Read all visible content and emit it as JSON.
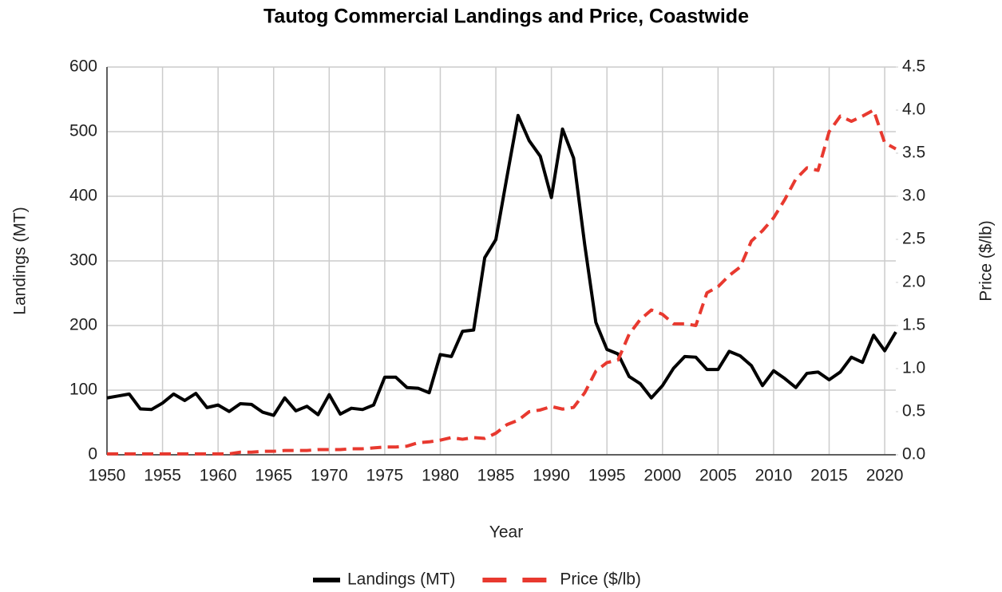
{
  "chart_data": {
    "type": "line",
    "title": "Tautog Commercial Landings and Price, Coastwide",
    "x_label": "Year",
    "y_label": "Landings (MT)",
    "y2_label": "Price ($/lb)",
    "x": [
      1950,
      1951,
      1952,
      1953,
      1954,
      1955,
      1956,
      1957,
      1958,
      1959,
      1960,
      1961,
      1962,
      1963,
      1964,
      1965,
      1966,
      1967,
      1968,
      1969,
      1970,
      1971,
      1972,
      1973,
      1974,
      1975,
      1976,
      1977,
      1978,
      1979,
      1980,
      1981,
      1982,
      1983,
      1984,
      1985,
      1986,
      1987,
      1988,
      1989,
      1990,
      1991,
      1992,
      1993,
      1994,
      1995,
      1996,
      1997,
      1998,
      1999,
      2000,
      2001,
      2002,
      2003,
      2004,
      2005,
      2006,
      2007,
      2008,
      2009,
      2010,
      2011,
      2012,
      2013,
      2014,
      2015,
      2016,
      2017,
      2018,
      2019,
      2020,
      2021
    ],
    "series": [
      {
        "name": "Landings (MT)",
        "color": "#000000",
        "dash": false,
        "values": [
          88,
          91,
          94,
          71,
          70,
          80,
          94,
          84,
          95,
          73,
          77,
          67,
          79,
          78,
          66,
          61,
          88,
          68,
          75,
          62,
          93,
          63,
          72,
          70,
          77,
          120,
          120,
          104,
          103,
          96,
          155,
          152,
          191,
          193,
          305,
          333,
          430,
          525,
          486,
          462,
          398,
          504,
          459,
          325,
          205,
          163,
          156,
          121,
          110,
          88,
          107,
          134,
          152,
          151,
          132,
          132,
          160,
          153,
          138,
          107,
          130,
          118,
          104,
          126,
          128,
          116,
          128,
          151,
          143,
          185,
          161,
          190
        ]
      },
      {
        "name": "Price ($/lb)",
        "color": "#e8392f",
        "dash": true,
        "axis": "y2",
        "values": [
          0.01,
          0.01,
          0.01,
          0.01,
          0.01,
          0.01,
          0.01,
          0.01,
          0.01,
          0.01,
          0.01,
          0.01,
          0.03,
          0.03,
          0.04,
          0.04,
          0.05,
          0.05,
          0.05,
          0.06,
          0.06,
          0.06,
          0.07,
          0.07,
          0.08,
          0.09,
          0.09,
          0.1,
          0.14,
          0.15,
          0.17,
          0.2,
          0.18,
          0.2,
          0.19,
          0.25,
          0.35,
          0.4,
          0.5,
          0.52,
          0.56,
          0.53,
          0.55,
          0.72,
          0.97,
          1.07,
          1.1,
          1.4,
          1.57,
          1.68,
          1.63,
          1.52,
          1.52,
          1.5,
          1.88,
          1.95,
          2.08,
          2.18,
          2.48,
          2.6,
          2.75,
          2.96,
          3.2,
          3.33,
          3.3,
          3.75,
          3.93,
          3.87,
          3.93,
          4.0,
          3.62,
          3.55
        ]
      }
    ],
    "xlim": [
      1950,
      2021
    ],
    "xticks": [
      1950,
      1955,
      1960,
      1965,
      1970,
      1975,
      1980,
      1985,
      1990,
      1995,
      2000,
      2005,
      2010,
      2015,
      2020
    ],
    "ylim": [
      0,
      600
    ],
    "yticks": [
      0,
      100,
      200,
      300,
      400,
      500,
      600
    ],
    "y2lim": [
      0,
      4.5
    ],
    "y2ticks": [
      {
        "value": 0,
        "label": "0.0"
      },
      0.5,
      {
        "value": 1,
        "label": "1.0"
      },
      1.5,
      {
        "value": 2,
        "label": "2.0"
      },
      2.5,
      {
        "value": 3,
        "label": "3.0"
      },
      3.5,
      {
        "value": 4,
        "label": "4.0"
      },
      4.5
    ],
    "grid": true,
    "legend": "bottom"
  }
}
